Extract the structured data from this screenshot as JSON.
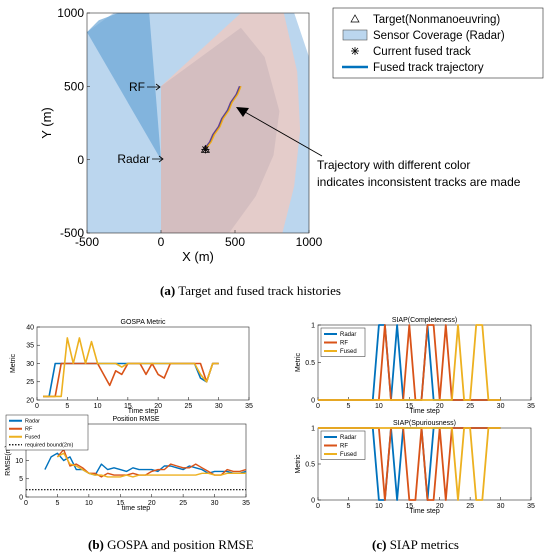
{
  "colors": {
    "radar": "#0072BD",
    "rf": "#D95319",
    "fused": "#EDB120",
    "bound": "#000000",
    "coverage_radar": "#BBD6EE",
    "coverage_radar_dark": "#6AA5D6",
    "coverage_rf": "#F1C8BD",
    "overlap": "#C7B3B8",
    "traj_purple": "#7E2F8E"
  },
  "panel_a": {
    "caption_tag": "(a)",
    "caption_text": "Target and fused track histories",
    "annotation_rf": "RF",
    "annotation_radar": "Radar",
    "annotation_traj_line1": "Trajectory with different color",
    "annotation_traj_line2": "indicates inconsistent tracks are made",
    "legend": [
      {
        "label": "Target(Nonmanoeuvring)",
        "marker": "triangle-icon"
      },
      {
        "label": "Sensor Coverage (Radar)",
        "marker": "coverage-swatch"
      },
      {
        "label": "Current fused track",
        "marker": "asterisk-icon"
      },
      {
        "label": "Fused track trajectory",
        "marker": "line"
      }
    ]
  },
  "panel_b": {
    "caption_tag": "(b)",
    "caption_text": "GOSPA and position RMSE"
  },
  "panel_c": {
    "caption_tag": "(c)",
    "caption_text": "SIAP metrics"
  },
  "chart_data": [
    {
      "id": "tracks",
      "type": "scatter",
      "title": "",
      "xlabel": "X (m)",
      "ylabel": "Y (m)",
      "xlim": [
        -500,
        1000
      ],
      "ylim": [
        -500,
        1000
      ],
      "xticks": [
        -500,
        0,
        500,
        1000
      ],
      "yticks": [
        -500,
        0,
        500,
        1000
      ],
      "radar_position": [
        0,
        0
      ],
      "rf_position": [
        0,
        500
      ],
      "current_fused_track": [
        300,
        70
      ],
      "target_start": [
        300,
        70
      ],
      "fused_track_trajectory": {
        "x": [
          300,
          330,
          360,
          390,
          420,
          450,
          480,
          510,
          540
        ],
        "y": [
          70,
          120,
          170,
          225,
          280,
          335,
          390,
          445,
          500
        ]
      }
    },
    {
      "id": "gospa",
      "type": "line",
      "title": "GOSPA Metric",
      "xlabel": "Time step",
      "ylabel": "Metric",
      "xlim": [
        0,
        35
      ],
      "ylim": [
        20,
        40
      ],
      "xticks": [
        0,
        5,
        10,
        15,
        20,
        25,
        30,
        35
      ],
      "yticks": [
        20,
        25,
        30,
        35,
        40
      ],
      "series": [
        {
          "name": "Radar",
          "x": [
            1,
            2,
            3,
            4,
            5,
            6,
            7,
            8,
            9,
            10,
            11,
            12,
            13,
            14,
            15,
            16,
            17,
            18,
            19,
            20,
            21,
            22,
            23,
            24,
            25,
            26,
            27,
            28,
            29,
            30
          ],
          "values": [
            21,
            21,
            30,
            30,
            30,
            30,
            30,
            30,
            30,
            30,
            30,
            30,
            30,
            30,
            30,
            30,
            30,
            30,
            30,
            30,
            30,
            30,
            30,
            30,
            30,
            30,
            26,
            25,
            30,
            30
          ]
        },
        {
          "name": "RF",
          "x": [
            1,
            2,
            3,
            4,
            5,
            6,
            7,
            8,
            9,
            10,
            11,
            12,
            13,
            14,
            15,
            16,
            17,
            18,
            19,
            20,
            21,
            22,
            23,
            24,
            25,
            26,
            27,
            28,
            29,
            30
          ],
          "values": [
            21,
            21,
            21,
            30,
            30,
            30,
            30,
            30,
            30,
            30,
            27,
            24,
            28,
            27,
            30,
            30,
            30,
            27,
            30,
            27,
            26,
            30,
            30,
            30,
            30,
            30,
            30,
            25,
            30,
            30
          ]
        },
        {
          "name": "Fused",
          "x": [
            1,
            2,
            3,
            4,
            5,
            6,
            7,
            8,
            9,
            10,
            11,
            12,
            13,
            14,
            15,
            16,
            17,
            18,
            19,
            20,
            21,
            22,
            23,
            24,
            25,
            26,
            27,
            28,
            29,
            30
          ],
          "values": [
            21,
            21,
            21,
            21,
            37,
            30,
            37,
            30,
            36,
            30,
            30,
            30,
            30,
            29,
            30,
            30,
            30,
            30,
            30,
            30,
            30,
            30,
            30,
            30,
            30,
            30,
            27,
            25,
            30,
            30
          ]
        }
      ]
    },
    {
      "id": "rmse",
      "type": "line",
      "title": "Position RMSE",
      "xlabel": "time step",
      "ylabel": "RMSE(m)",
      "xlim": [
        0,
        35
      ],
      "ylim": [
        0,
        20
      ],
      "xticks": [
        0,
        5,
        10,
        15,
        20,
        25,
        30,
        35
      ],
      "yticks": [
        0,
        5,
        10,
        15,
        20
      ],
      "legend": [
        "Radar",
        "RF",
        "Fused",
        "required bound(2m)"
      ],
      "series": [
        {
          "name": "Radar",
          "x": [
            3,
            4,
            5,
            6,
            7,
            8,
            9,
            10,
            11,
            12,
            13,
            14,
            15,
            16,
            17,
            18,
            19,
            20,
            21,
            22,
            23,
            24,
            25,
            26,
            27,
            28,
            29,
            30,
            31,
            32,
            33,
            34,
            35
          ],
          "values": [
            7.5,
            11,
            12,
            10,
            11,
            7.5,
            7.5,
            6.5,
            6,
            9,
            7.5,
            8,
            7.5,
            7,
            8,
            7.5,
            7.5,
            7.5,
            7,
            8.5,
            8.5,
            8,
            7.5,
            8.5,
            8,
            7.5,
            6.5,
            7,
            7,
            7,
            6.5,
            6.5,
            7
          ]
        },
        {
          "name": "RF",
          "x": [
            5,
            6,
            7,
            8,
            9,
            10,
            11,
            12,
            13,
            14,
            15,
            16,
            17,
            18,
            19,
            20,
            21,
            22,
            23,
            24,
            25,
            26,
            27,
            28,
            29,
            30,
            31,
            32,
            33,
            34,
            35
          ],
          "values": [
            11,
            13,
            8.5,
            9,
            8,
            6.5,
            6.5,
            5.5,
            6.5,
            6,
            6,
            6,
            6.5,
            6,
            6,
            7,
            7.5,
            7.5,
            9,
            8.5,
            8,
            8,
            9,
            8,
            7,
            6,
            6,
            7.5,
            7,
            7,
            7.5
          ]
        },
        {
          "name": "Fused",
          "x": [
            5,
            6,
            7,
            8,
            9,
            10,
            11,
            12,
            13,
            14,
            15,
            16,
            17,
            18,
            19,
            20,
            21,
            22,
            23,
            24,
            25,
            26,
            27,
            28,
            29,
            30,
            31,
            32,
            33,
            34,
            35
          ],
          "values": [
            11,
            12,
            9,
            8.5,
            7.5,
            6.5,
            6,
            6,
            5.5,
            5.5,
            5.5,
            6,
            5.5,
            6,
            6,
            6,
            6,
            6,
            6,
            6,
            6,
            6,
            6,
            6.5,
            6.5,
            6,
            6,
            6.5,
            6.5,
            6.5,
            6.5
          ]
        },
        {
          "name": "required bound(2m)",
          "x": [
            0,
            35
          ],
          "values": [
            2,
            2
          ]
        }
      ]
    },
    {
      "id": "siap_completeness",
      "type": "line",
      "title": "SIAP(Completeness)",
      "xlabel": "Time step",
      "ylabel": "Metric",
      "xlim": [
        0,
        35
      ],
      "ylim": [
        0,
        1
      ],
      "xticks": [
        0,
        5,
        10,
        15,
        20,
        25,
        30,
        35
      ],
      "yticks": [
        0,
        0.5,
        1
      ],
      "series": [
        {
          "name": "Radar",
          "x": [
            0,
            9,
            10,
            11,
            12,
            13,
            14,
            17,
            18,
            19,
            20,
            21,
            22,
            23,
            24,
            25,
            26,
            27,
            28,
            29,
            30
          ],
          "values": [
            0,
            0,
            1,
            1,
            0,
            1,
            0,
            0,
            1,
            0,
            0,
            0,
            0,
            0,
            0,
            0,
            0,
            0,
            0,
            0,
            0
          ]
        },
        {
          "name": "RF",
          "x": [
            0,
            10,
            11,
            12,
            13,
            14,
            15,
            16,
            17,
            18,
            19,
            20,
            21,
            22,
            23,
            24,
            25,
            26,
            27,
            28,
            29,
            30
          ],
          "values": [
            0,
            0,
            1,
            0,
            0,
            0,
            1,
            0,
            0,
            1,
            1,
            0,
            1,
            0,
            0,
            0,
            0,
            0,
            0,
            0,
            0,
            0
          ]
        },
        {
          "name": "Fused",
          "x": [
            0,
            22,
            23,
            24,
            25,
            26,
            27,
            28,
            29,
            30
          ],
          "values": [
            0,
            0,
            1,
            0,
            0,
            1,
            1,
            0,
            0,
            0
          ]
        }
      ]
    },
    {
      "id": "siap_spuriousness",
      "type": "line",
      "title": "SIAP(Spuriousness)",
      "xlabel": "Time step",
      "ylabel": "Metric",
      "xlim": [
        0,
        35
      ],
      "ylim": [
        0,
        1
      ],
      "xticks": [
        0,
        5,
        10,
        15,
        20,
        25,
        30,
        35
      ],
      "yticks": [
        0,
        0.5,
        1
      ],
      "series": [
        {
          "name": "Radar",
          "x": [
            0,
            9,
            10,
            11,
            12,
            13,
            14,
            17,
            18,
            19,
            20,
            30
          ],
          "values": [
            1,
            1,
            0,
            0,
            1,
            0,
            1,
            1,
            0,
            1,
            1,
            1
          ]
        },
        {
          "name": "RF",
          "x": [
            0,
            10,
            11,
            12,
            13,
            14,
            15,
            16,
            17,
            18,
            19,
            20,
            21,
            22,
            30
          ],
          "values": [
            1,
            1,
            0,
            1,
            1,
            1,
            0,
            0,
            1,
            0,
            0,
            1,
            0,
            1,
            1
          ]
        },
        {
          "name": "Fused",
          "x": [
            0,
            22,
            23,
            24,
            25,
            26,
            27,
            28,
            29,
            30
          ],
          "values": [
            1,
            1,
            0,
            1,
            1,
            0,
            0,
            1,
            1,
            1
          ]
        }
      ]
    }
  ]
}
